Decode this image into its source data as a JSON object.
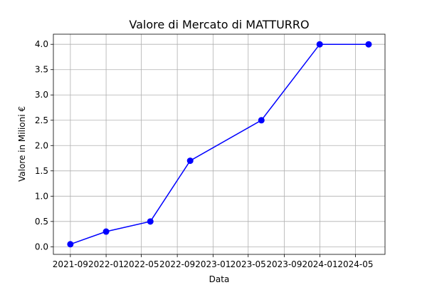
{
  "chart_data": {
    "type": "line",
    "title": "Valore di Mercato di MATTURRO",
    "xlabel": "Data",
    "ylabel": "Valore in Milioni €",
    "x": [
      "2021-09-01",
      "2022-01-01",
      "2022-06-01",
      "2022-10-15",
      "2023-06-15",
      "2023-12-31",
      "2024-06-15"
    ],
    "series": [
      {
        "values": [
          0.05,
          0.3,
          0.5,
          1.7,
          2.5,
          4.0,
          4.0
        ],
        "color": "#0000ff",
        "marker": "circle"
      }
    ],
    "x_ticks": [
      "2021-09",
      "2022-01",
      "2022-05",
      "2022-09",
      "2023-01",
      "2023-05",
      "2023-09",
      "2024-01",
      "2024-05"
    ],
    "x_tick_dates": [
      "2021-09-01",
      "2022-01-01",
      "2022-05-01",
      "2022-09-01",
      "2023-01-01",
      "2023-05-01",
      "2023-09-01",
      "2024-01-01",
      "2024-05-01"
    ],
    "xlim": [
      "2021-07-05",
      "2024-08-10"
    ],
    "y_ticks": [
      "0.0",
      "0.5",
      "1.0",
      "1.5",
      "2.0",
      "2.5",
      "3.0",
      "3.5",
      "4.0"
    ],
    "ylim": [
      -0.15,
      4.2
    ],
    "grid": true
  }
}
